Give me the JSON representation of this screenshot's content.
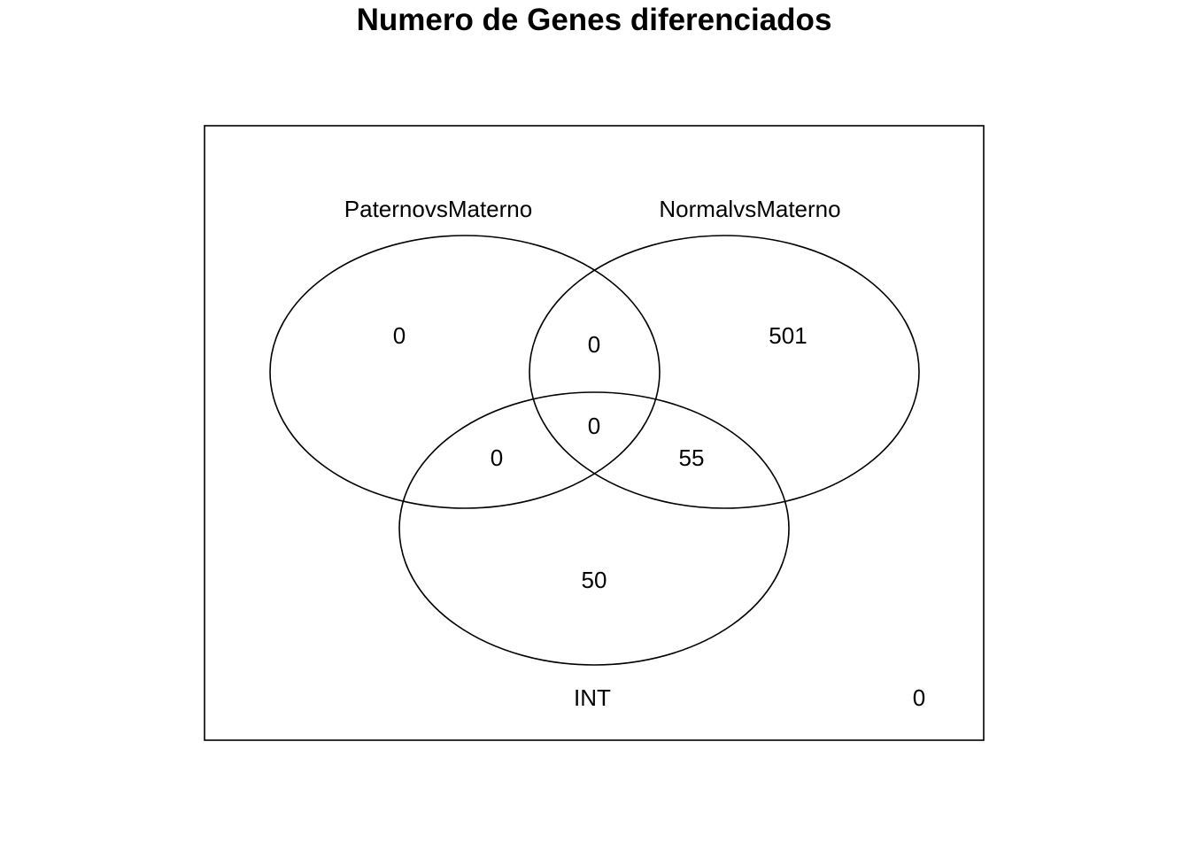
{
  "title": "Numero de Genes diferenciados",
  "sets": [
    {
      "id": "A",
      "label": "PaternovsMaterno"
    },
    {
      "id": "B",
      "label": "NormalvsMaterno"
    },
    {
      "id": "C",
      "label": "INT"
    }
  ],
  "regions": {
    "only_A": "0",
    "only_B": "501",
    "only_C": "50",
    "A_and_B": "0",
    "A_and_C": "0",
    "B_and_C": "55",
    "A_B_C": "0",
    "outside": "0"
  }
}
